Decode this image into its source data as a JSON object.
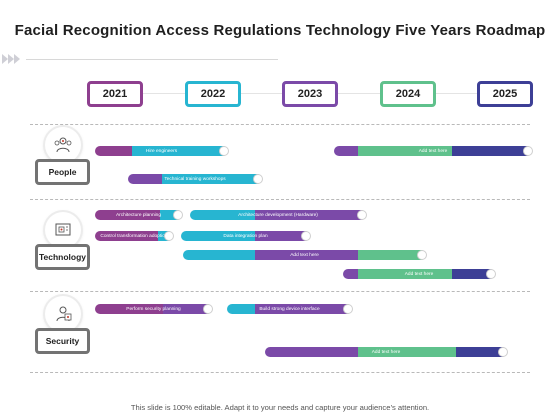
{
  "title": "Facial Recognition Access Regulations Technology Five Years Roadmap",
  "colors": {
    "purple": "#8e3f8f",
    "cyan": "#27b5d1",
    "violet": "#7b4aa8",
    "green": "#5fc18c",
    "navy": "#3d3f96",
    "gray": "#737373"
  },
  "years": [
    {
      "label": "2021",
      "color": "#8e3f8f"
    },
    {
      "label": "2022",
      "color": "#27b5d1"
    },
    {
      "label": "2023",
      "color": "#7b4aa8"
    },
    {
      "label": "2024",
      "color": "#5fc18c"
    },
    {
      "label": "2025",
      "color": "#3d3f96"
    }
  ],
  "categories": [
    {
      "label": "People",
      "icon": "people-icon"
    },
    {
      "label": "Technology",
      "icon": "technology-icon"
    },
    {
      "label": "Security",
      "icon": "security-icon"
    }
  ],
  "bars": [
    {
      "text": "Hire engineers"
    },
    {
      "text": "Add text here"
    },
    {
      "text": "Technical training workshops"
    },
    {
      "text": "Architecture planning"
    },
    {
      "text": "Architecture development (Hardware)"
    },
    {
      "text": "Control transformation adoption"
    },
    {
      "text": "Data integration plan"
    },
    {
      "text": "Add text here"
    },
    {
      "text": "Add text here"
    },
    {
      "text": "Perform security planning"
    },
    {
      "text": "Build strong device interface"
    },
    {
      "text": "Add text here"
    }
  ],
  "footer": "This slide is 100% editable. Adapt it to your needs and capture your audience’s attention."
}
